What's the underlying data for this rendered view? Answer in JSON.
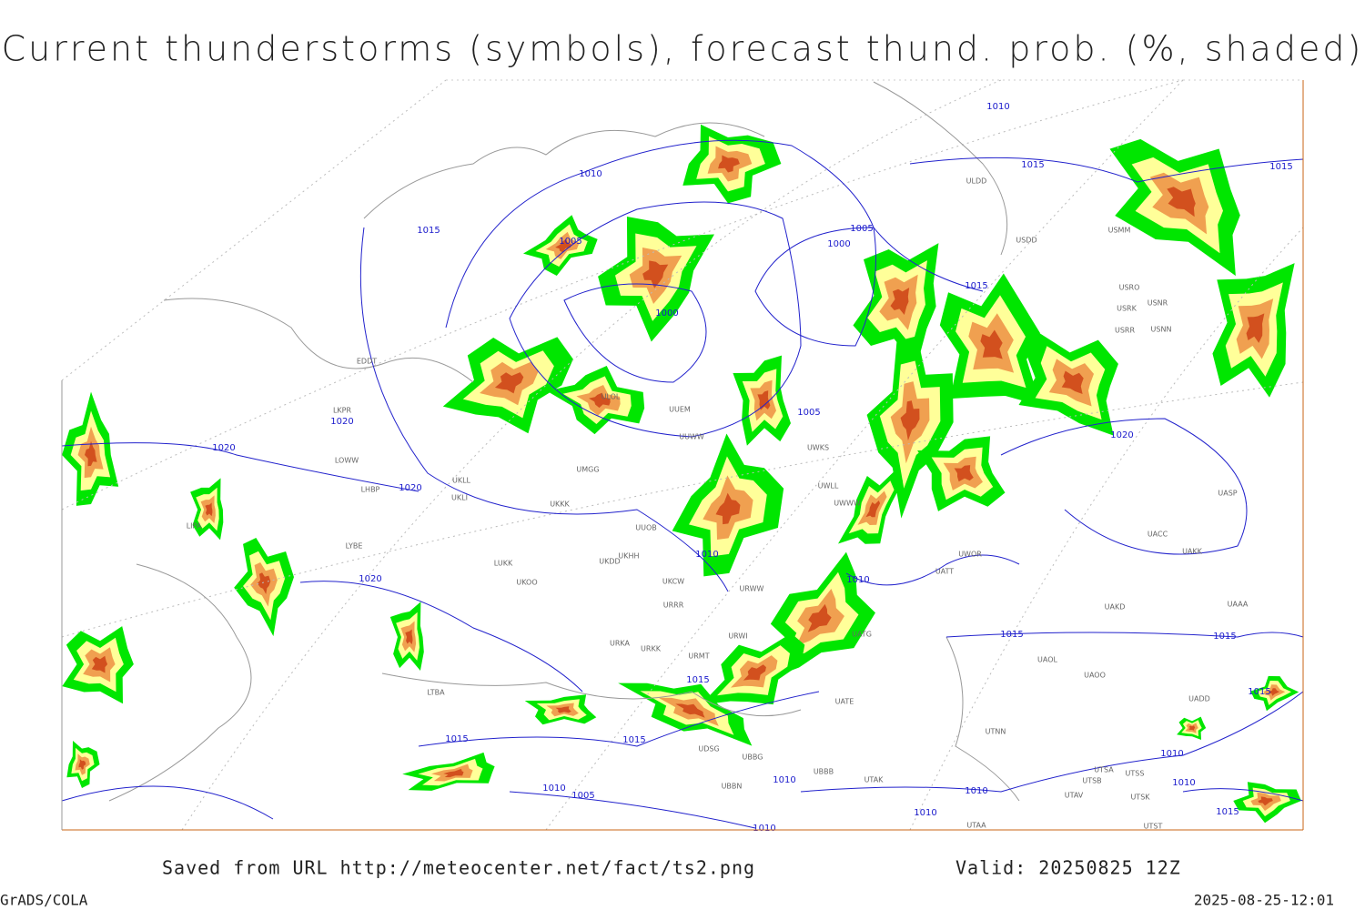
{
  "header": {
    "title": "Current thunderstorms (symbols), forecast thund. prob. (%, shaded)"
  },
  "footer": {
    "source": "Saved from URL http://meteocenter.net/fact/ts2.png",
    "valid": "Valid: 20250825 12Z",
    "software": "GrADS/COLA",
    "timestamp": "2025-08-25-12:01"
  },
  "map": {
    "isobar_labels": [
      "1010",
      "1015",
      "1015",
      "1010",
      "1015",
      "1005",
      "1005",
      "1000",
      "1015",
      "1000",
      "1005",
      "1020",
      "1020",
      "1020",
      "1020",
      "1010",
      "1010",
      "1020",
      "1015",
      "1015",
      "1015",
      "1015",
      "1015",
      "1015",
      "1010",
      "1010",
      "1010",
      "1010",
      "1005",
      "1010",
      "1010",
      "1015",
      "1010"
    ],
    "station_labels": [
      "ULDD",
      "USDD",
      "USMM",
      "USRO",
      "USRK",
      "USNR",
      "USRR",
      "USNN",
      "EDDT",
      "LKPR",
      "LOWW",
      "LHBP",
      "LIPA",
      "LYBE",
      "UKLL",
      "UKLI",
      "UKKK",
      "LUKK",
      "UKOO",
      "UUEM",
      "UUWW",
      "ULOL",
      "UMGG",
      "UUOB",
      "UKHH",
      "UKDD",
      "UKCW",
      "URRR",
      "URWW",
      "URWI",
      "URKA",
      "URKK",
      "URMT",
      "UATG",
      "UATE",
      "UATT",
      "UWOR",
      "UACC",
      "UAKK",
      "UASP",
      "UAKD",
      "UAAA",
      "UAOL",
      "UAOO",
      "UADD",
      "UTNN",
      "UTSA",
      "UTSB",
      "UTSS",
      "UTAV",
      "UTSK",
      "UTAA",
      "UTST",
      "UTAK",
      "UBBB",
      "UBBN",
      "UDSG",
      "UBBG",
      "LTBA",
      "UWKS",
      "UWLL",
      "UWWW"
    ]
  }
}
